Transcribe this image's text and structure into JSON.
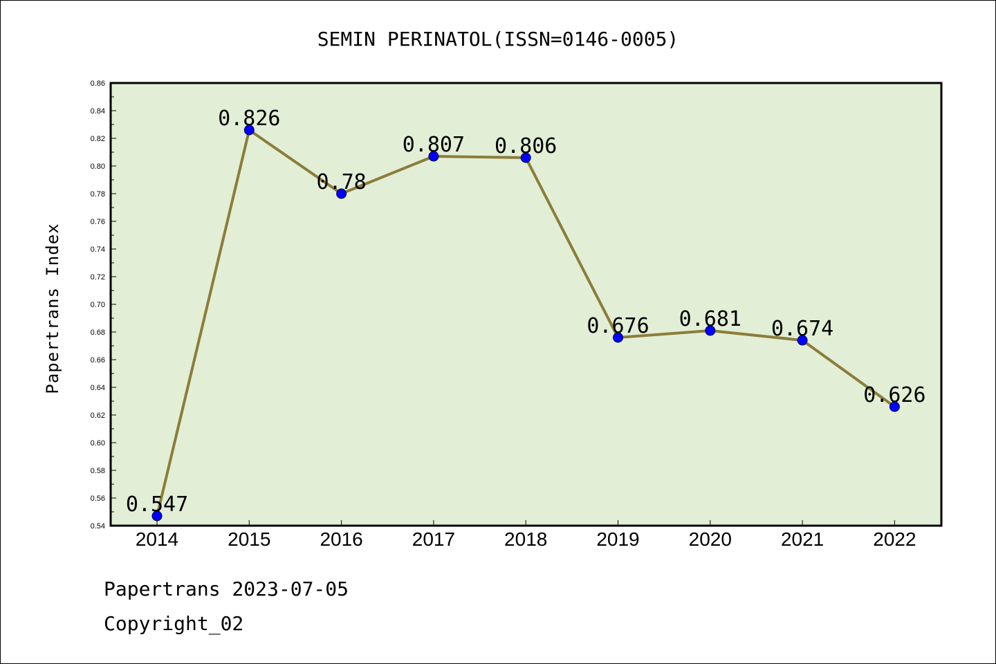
{
  "chart_data": {
    "type": "line",
    "title": "SEMIN PERINATOL(ISSN=0146-0005)",
    "xlabel": "",
    "ylabel": "Papertrans Index",
    "categories": [
      "2014",
      "2015",
      "2016",
      "2017",
      "2018",
      "2019",
      "2020",
      "2021",
      "2022"
    ],
    "values": [
      0.547,
      0.826,
      0.78,
      0.807,
      0.806,
      0.676,
      0.681,
      0.674,
      0.626
    ],
    "data_labels": [
      "0.547",
      "0.826",
      "0.78",
      "0.807",
      "0.806",
      "0.676",
      "0.681",
      "0.674",
      "0.626"
    ],
    "ylim": [
      0.54,
      0.86
    ],
    "yticks": [
      "0.54",
      "0.56",
      "0.58",
      "0.60",
      "0.62",
      "0.64",
      "0.66",
      "0.68",
      "0.70",
      "0.72",
      "0.74",
      "0.76",
      "0.78",
      "0.80",
      "0.82",
      "0.84",
      "0.86"
    ],
    "grid": false,
    "legend": "none",
    "colors": {
      "plot_background": "#e2efd6",
      "line": "#8b7d3a",
      "marker": "#0000ff"
    }
  },
  "footer": {
    "date_line": "Papertrans 2023-07-05",
    "copyright": "Copyright_02"
  }
}
